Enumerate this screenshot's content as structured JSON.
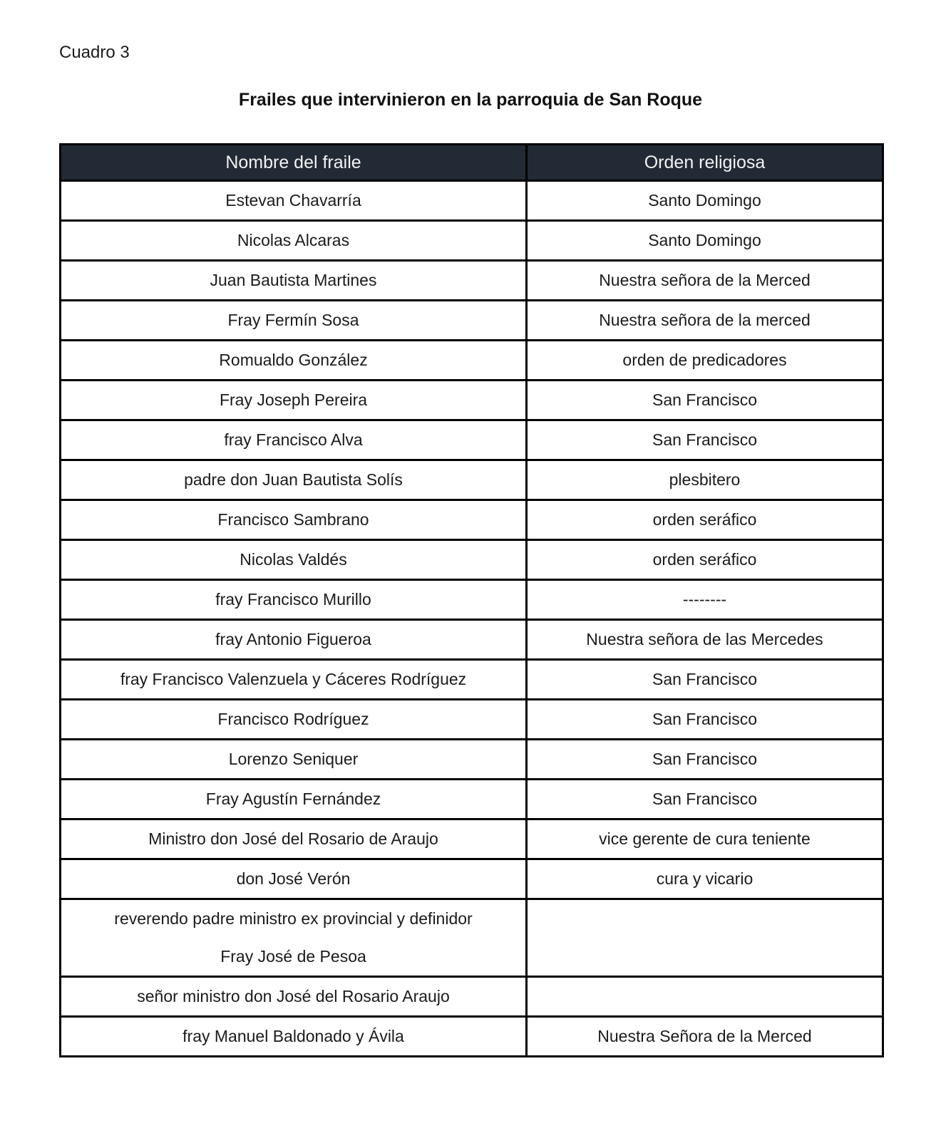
{
  "document": {
    "label": "Cuadro 3",
    "title": "Frailes que intervinieron en la parroquia de San Roque"
  },
  "table": {
    "columns": [
      "Nombre del fraile",
      "Orden religiosa"
    ],
    "rows": [
      {
        "name_lines": [
          "Estevan Chavarría"
        ],
        "order": "Santo Domingo"
      },
      {
        "name_lines": [
          "Nicolas Alcaras"
        ],
        "order": "Santo Domingo"
      },
      {
        "name_lines": [
          "Juan Bautista Martines"
        ],
        "order": "Nuestra señora de la Merced"
      },
      {
        "name_lines": [
          "Fray Fermín Sosa"
        ],
        "order": "Nuestra señora de la merced"
      },
      {
        "name_lines": [
          "Romualdo González"
        ],
        "order": "orden de predicadores"
      },
      {
        "name_lines": [
          "Fray Joseph Pereira"
        ],
        "order": "San Francisco"
      },
      {
        "name_lines": [
          "fray Francisco Alva"
        ],
        "order": "San Francisco"
      },
      {
        "name_lines": [
          "padre don Juan Bautista Solís"
        ],
        "order": "plesbitero"
      },
      {
        "name_lines": [
          "Francisco Sambrano"
        ],
        "order": "orden seráfico"
      },
      {
        "name_lines": [
          "Nicolas Valdés"
        ],
        "order": "orden seráfico"
      },
      {
        "name_lines": [
          "fray Francisco Murillo"
        ],
        "order": "--------"
      },
      {
        "name_lines": [
          "fray Antonio Figueroa"
        ],
        "order": "Nuestra señora de las Mercedes"
      },
      {
        "name_lines": [
          "fray Francisco Valenzuela y Cáceres Rodríguez"
        ],
        "order": "San Francisco"
      },
      {
        "name_lines": [
          "Francisco Rodríguez"
        ],
        "order": "San Francisco"
      },
      {
        "name_lines": [
          "Lorenzo Seniquer"
        ],
        "order": "San Francisco"
      },
      {
        "name_lines": [
          "Fray Agustín Fernández"
        ],
        "order": "San Francisco"
      },
      {
        "name_lines": [
          "Ministro don José del Rosario de Araujo"
        ],
        "order": "vice gerente de cura teniente"
      },
      {
        "name_lines": [
          "don José Verón"
        ],
        "order": "cura y vicario"
      },
      {
        "name_lines": [
          "reverendo padre ministro ex provincial y definidor",
          "Fray José de Pesoa"
        ],
        "order": ""
      },
      {
        "name_lines": [
          "señor ministro don José del Rosario Araujo"
        ],
        "order": ""
      },
      {
        "name_lines": [
          "fray Manuel Baldonado y Ávila"
        ],
        "order": "Nuestra Señora de la Merced"
      }
    ],
    "colors": {
      "header_bg": "#222A35",
      "header_text": "#F2F2F2",
      "border": "#000000",
      "body_text": "#1B1B1B"
    }
  }
}
